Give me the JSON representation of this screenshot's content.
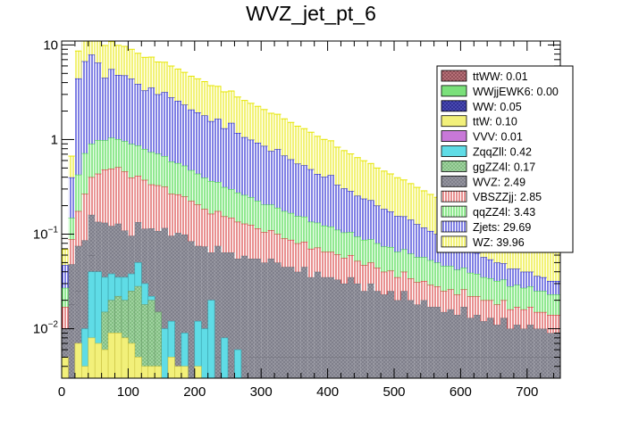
{
  "chart_data": {
    "type": "stacked-histogram",
    "title": "WVZ_jet_pt_6",
    "xlabel": "",
    "ylabel": "",
    "xlim": [
      0,
      750
    ],
    "ylim": [
      0.003,
      11
    ],
    "yscale": "log",
    "bin_width": 10,
    "x_ticks": [
      "0",
      "100",
      "200",
      "300",
      "400",
      "500",
      "600",
      "700"
    ],
    "x_tick_values": [
      0,
      100,
      200,
      300,
      400,
      500,
      600,
      700
    ],
    "y_ticks": [
      {
        "value": 10,
        "base": "10",
        "exp": ""
      },
      {
        "value": 1,
        "base": "1",
        "exp": ""
      },
      {
        "value": 0.1,
        "base": "10",
        "exp": "−1"
      },
      {
        "value": 0.01,
        "base": "10",
        "exp": "−2"
      }
    ],
    "legend": [
      {
        "label": "ttWW: 0.01",
        "color": "#b0686e",
        "pattern": "cross"
      },
      {
        "label": "WWjjEWK6: 0.00",
        "color": "#7ae07a",
        "pattern": "solid"
      },
      {
        "label": "WW: 0.05",
        "color": "#3a3aa8",
        "pattern": "cross"
      },
      {
        "label": "ttW: 0.10",
        "color": "#f2f07a",
        "pattern": "solid"
      },
      {
        "label": "VVV: 0.01",
        "color": "#c878d8",
        "pattern": "solid"
      },
      {
        "label": "ZqqZll: 0.42",
        "color": "#5fdce6",
        "pattern": "solid"
      },
      {
        "label": "ggZZ4l: 0.17",
        "color": "#9cd49c",
        "pattern": "cross"
      },
      {
        "label": "WVZ: 2.49",
        "color": "#8f8f98",
        "pattern": "cross"
      },
      {
        "label": "VBSZZjj: 2.85",
        "color": "#d02020",
        "pattern": "vertical"
      },
      {
        "label": "qqZZ4l: 3.43",
        "color": "#3ad23a",
        "pattern": "vertical"
      },
      {
        "label": "Zjets: 29.69",
        "color": "#0000c8",
        "pattern": "vertical"
      },
      {
        "label": "WZ: 39.96",
        "color": "#e6e600",
        "pattern": "vertical"
      }
    ],
    "stack": {
      "fine": [
        0.004,
        0.018,
        0.025,
        0.006,
        0.06,
        0.025,
        0.012,
        0.012,
        0.009,
        0.009,
        0.006,
        0.004,
        0.004,
        0.015,
        0.008,
        0.006,
        0.006,
        0.003,
        0.009,
        0.004,
        0.005,
        0.004,
        0.004,
        0.005,
        0.004,
        0.004,
        0.005,
        0.004,
        0.005,
        0.005,
        0.005,
        0.005,
        0.005,
        0.005,
        0.005,
        0.005,
        0.005,
        0.005,
        0.005,
        0.005,
        0.005,
        0.005,
        0.005,
        0.005,
        0.005,
        0.005,
        0.005,
        0.005,
        0.005,
        0.005,
        0.005,
        0.005,
        0.005,
        0.005,
        0.005,
        0.005,
        0.005,
        0.005,
        0.005,
        0.005,
        0.005,
        0.005,
        0.005,
        0.005,
        0.005,
        0.005,
        0.005,
        0.005,
        0.005,
        0.005,
        0.005,
        0.005,
        0.005,
        0.005,
        0.005
      ],
      "wvz": [
        0.006,
        0.03,
        0.05,
        0.08,
        0.1,
        0.11,
        0.12,
        0.11,
        0.12,
        0.1,
        0.09,
        0.13,
        0.11,
        0.1,
        0.1,
        0.11,
        0.09,
        0.1,
        0.09,
        0.08,
        0.07,
        0.07,
        0.06,
        0.07,
        0.06,
        0.06,
        0.05,
        0.055,
        0.05,
        0.05,
        0.045,
        0.05,
        0.045,
        0.04,
        0.04,
        0.035,
        0.04,
        0.03,
        0.035,
        0.03,
        0.03,
        0.028,
        0.025,
        0.03,
        0.025,
        0.02,
        0.025,
        0.02,
        0.018,
        0.02,
        0.015,
        0.02,
        0.015,
        0.013,
        0.015,
        0.012,
        0.012,
        0.01,
        0.011,
        0.009,
        0.012,
        0.008,
        0.009,
        0.007,
        0.008,
        0.006,
        0.008,
        0.005,
        0.006,
        0.005,
        0.006,
        0.005,
        0.005,
        0.004,
        0.004
      ],
      "vbs": [
        0.007,
        0.04,
        0.1,
        0.18,
        0.24,
        0.3,
        0.35,
        0.37,
        0.38,
        0.35,
        0.3,
        0.28,
        0.26,
        0.22,
        0.22,
        0.2,
        0.17,
        0.16,
        0.15,
        0.14,
        0.13,
        0.11,
        0.1,
        0.1,
        0.09,
        0.085,
        0.08,
        0.07,
        0.07,
        0.06,
        0.055,
        0.055,
        0.05,
        0.045,
        0.042,
        0.04,
        0.038,
        0.035,
        0.032,
        0.03,
        0.03,
        0.028,
        0.026,
        0.025,
        0.022,
        0.022,
        0.02,
        0.019,
        0.017,
        0.016,
        0.015,
        0.015,
        0.014,
        0.013,
        0.012,
        0.012,
        0.011,
        0.01,
        0.01,
        0.009,
        0.009,
        0.009,
        0.008,
        0.008,
        0.007,
        0.007,
        0.007,
        0.006,
        0.006,
        0.006,
        0.006,
        0.005,
        0.005,
        0.005,
        0.005
      ],
      "qq": [
        0.01,
        0.06,
        0.25,
        0.45,
        0.5,
        0.55,
        0.5,
        0.55,
        0.5,
        0.5,
        0.5,
        0.45,
        0.42,
        0.4,
        0.38,
        0.35,
        0.32,
        0.3,
        0.28,
        0.25,
        0.23,
        0.21,
        0.2,
        0.18,
        0.16,
        0.15,
        0.14,
        0.13,
        0.12,
        0.11,
        0.1,
        0.095,
        0.09,
        0.085,
        0.08,
        0.075,
        0.07,
        0.065,
        0.06,
        0.058,
        0.055,
        0.05,
        0.048,
        0.045,
        0.042,
        0.04,
        0.038,
        0.036,
        0.034,
        0.032,
        0.03,
        0.029,
        0.028,
        0.026,
        0.025,
        0.024,
        0.022,
        0.021,
        0.02,
        0.019,
        0.018,
        0.017,
        0.016,
        0.015,
        0.014,
        0.014,
        0.013,
        0.012,
        0.012,
        0.011,
        0.011,
        0.01,
        0.01,
        0.009,
        0.009
      ],
      "zj": [
        0.02,
        0.25,
        4.0,
        6.0,
        7.0,
        5.5,
        3.5,
        4.5,
        3.8,
        3.8,
        3.5,
        3.0,
        2.5,
        2.8,
        2.3,
        2.5,
        2.2,
        2.0,
        1.8,
        1.6,
        1.5,
        1.4,
        1.2,
        1.3,
        1.0,
        1.2,
        0.9,
        0.8,
        0.75,
        0.7,
        0.65,
        0.55,
        0.6,
        0.5,
        0.45,
        0.4,
        0.38,
        0.35,
        0.3,
        0.28,
        0.3,
        0.22,
        0.2,
        0.18,
        0.16,
        0.15,
        0.14,
        0.12,
        0.11,
        0.1,
        0.09,
        0.085,
        0.08,
        0.07,
        0.06,
        0.055,
        0.05,
        0.045,
        0.04,
        0.035,
        0.03,
        0.028,
        0.025,
        0.022,
        0.02,
        0.018,
        0.016,
        0.015,
        0.014,
        0.013,
        0.012,
        0.011,
        0.01,
        0.009,
        0.009
      ],
      "wz": [
        0.022,
        0.27,
        4.2,
        6.3,
        7.5,
        6.1,
        5.4,
        5.3,
        5.1,
        4.9,
        4.6,
        4.3,
        4.1,
        3.9,
        3.6,
        3.4,
        3.2,
        3.0,
        2.8,
        2.6,
        2.45,
        2.3,
        2.15,
        2.0,
        1.88,
        1.76,
        1.64,
        1.53,
        1.42,
        1.32,
        1.22,
        1.14,
        1.06,
        0.98,
        0.9,
        0.83,
        0.77,
        0.71,
        0.65,
        0.6,
        0.55,
        0.5,
        0.46,
        0.42,
        0.39,
        0.36,
        0.33,
        0.3,
        0.28,
        0.26,
        0.24,
        0.22,
        0.2,
        0.185,
        0.17,
        0.155,
        0.145,
        0.135,
        0.125,
        0.115,
        0.105,
        0.098,
        0.091,
        0.085,
        0.079,
        0.073,
        0.068,
        0.063,
        0.059,
        0.055,
        0.052,
        0.049,
        0.046,
        0.043,
        0.041
      ],
      "zqq": [
        0,
        0,
        0,
        0.01,
        0.04,
        0.04,
        0.035,
        0.038,
        0.035,
        0.035,
        0.038,
        0.05,
        0.03,
        0.022,
        0.012,
        0.01,
        0.012,
        0,
        0.009,
        0,
        0.012,
        0.01,
        0.02,
        0,
        0.008,
        0,
        0.006,
        0,
        0,
        0,
        0,
        0,
        0,
        0,
        0,
        0,
        0,
        0,
        0,
        0,
        0,
        0,
        0,
        0,
        0,
        0,
        0,
        0,
        0,
        0,
        0,
        0,
        0,
        0,
        0,
        0,
        0,
        0,
        0,
        0,
        0,
        0,
        0,
        0,
        0,
        0,
        0,
        0,
        0,
        0,
        0,
        0,
        0,
        0,
        0
      ],
      "ggzz": [
        0,
        0,
        0,
        0,
        0,
        0,
        0.015,
        0.02,
        0.022,
        0.02,
        0.025,
        0.028,
        0.018,
        0.02,
        0.015,
        0,
        0,
        0,
        0,
        0,
        0,
        0,
        0,
        0,
        0,
        0,
        0,
        0,
        0,
        0,
        0,
        0,
        0,
        0,
        0,
        0,
        0,
        0,
        0,
        0,
        0,
        0,
        0,
        0,
        0,
        0,
        0,
        0,
        0,
        0,
        0,
        0,
        0,
        0,
        0,
        0,
        0,
        0,
        0,
        0,
        0,
        0,
        0,
        0,
        0,
        0,
        0,
        0,
        0,
        0,
        0,
        0,
        0,
        0,
        0
      ],
      "ttw": [
        0.005,
        0,
        0.007,
        0.004,
        0.008,
        0.007,
        0.006,
        0.009,
        0.009,
        0.008,
        0.007,
        0.005,
        0.004,
        0.004,
        0.004,
        0.003,
        0.005,
        0.004,
        0.004,
        0.003,
        0.004,
        0,
        0,
        0,
        0,
        0,
        0,
        0,
        0,
        0,
        0,
        0,
        0,
        0,
        0,
        0,
        0,
        0,
        0,
        0,
        0,
        0,
        0,
        0,
        0,
        0,
        0,
        0,
        0,
        0,
        0,
        0,
        0,
        0,
        0,
        0,
        0,
        0,
        0,
        0,
        0,
        0,
        0,
        0,
        0,
        0,
        0,
        0,
        0,
        0,
        0,
        0,
        0,
        0,
        0
      ]
    }
  }
}
